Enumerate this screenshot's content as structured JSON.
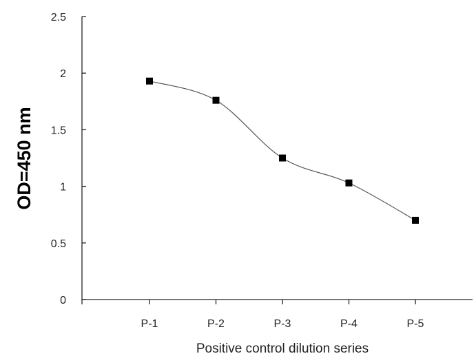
{
  "chart_data": {
    "type": "line",
    "categories": [
      "P-1",
      "P-2",
      "P-3",
      "P-4",
      "P-5"
    ],
    "series": [
      {
        "values": [
          1.93,
          1.76,
          1.25,
          1.03,
          0.7
        ]
      }
    ],
    "xlabel": "Positive control dilution series",
    "ylabel": "OD=450 nm",
    "ylim": [
      0,
      2.5
    ],
    "yticks": [
      0,
      0.5,
      1,
      1.5,
      2,
      2.5
    ],
    "ytick_labels": [
      "0",
      "0.5",
      "1",
      "1.5",
      "2",
      "2.5"
    ],
    "grid": false,
    "smooth": true,
    "marker": "square",
    "colors": {
      "line": "#555555",
      "marker": "#000000",
      "axis": "#222222"
    }
  }
}
